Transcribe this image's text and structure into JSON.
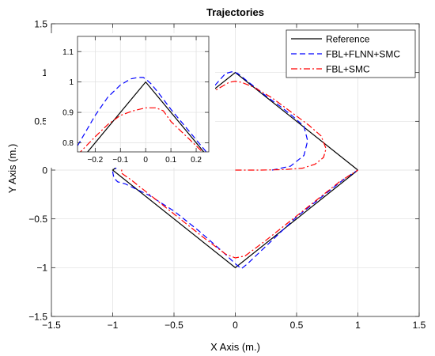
{
  "chart_data": [
    {
      "type": "line",
      "title": "Trajectories",
      "xlabel": "X Axis (m.)",
      "ylabel": "Y Axis (m.)",
      "xlim": [
        -1.5,
        1.5
      ],
      "ylim": [
        -1.5,
        1.5
      ],
      "xticks": [
        -1.5,
        -1,
        -0.5,
        0,
        0.5,
        1,
        1.5
      ],
      "xtick_labels": [
        "−1.5",
        "−1",
        "−0.5",
        "0",
        "0.5",
        "1",
        "1.5"
      ],
      "yticks": [
        -1.5,
        -1,
        -0.5,
        0,
        0.5,
        1,
        1.5
      ],
      "ytick_labels": [
        "−1.5",
        "−1",
        "−0.5",
        "0",
        "0.5",
        "1",
        "1.5"
      ],
      "grid": true,
      "legend": {
        "placement": "top-right",
        "entries": [
          "Reference",
          "FBL+FLNN+SMC",
          "FBL+SMC"
        ]
      },
      "series": [
        {
          "name": "Reference",
          "color": "#000000",
          "style": "solid",
          "x": [
            1,
            0,
            -1,
            0,
            1
          ],
          "y": [
            0,
            1,
            0,
            -1,
            0
          ]
        },
        {
          "name": "FBL+FLNN+SMC",
          "color": "#0000ff",
          "style": "dashed",
          "x": [
            0.3,
            0.45,
            0.56,
            0.59,
            0.56,
            0.47,
            0.37,
            0.26,
            0.16,
            0.07,
            0.02,
            -0.02,
            -0.08,
            -0.2,
            -0.4,
            -0.6,
            -0.8,
            -0.95,
            -1.0,
            -0.99,
            -0.96,
            -0.9,
            -0.7,
            -0.5,
            -0.3,
            -0.1,
            0.0,
            0.05,
            0.1,
            0.3,
            0.5,
            0.7,
            0.9,
            1.0
          ],
          "y": [
            0.0,
            0.04,
            0.15,
            0.3,
            0.45,
            0.55,
            0.65,
            0.75,
            0.85,
            0.94,
            0.99,
            1.01,
            0.99,
            0.82,
            0.62,
            0.42,
            0.22,
            0.06,
            -0.02,
            -0.08,
            -0.12,
            -0.14,
            -0.26,
            -0.42,
            -0.62,
            -0.84,
            -0.96,
            -1.01,
            -0.96,
            -0.72,
            -0.48,
            -0.28,
            -0.08,
            0.0
          ]
        },
        {
          "name": "FBL+SMC",
          "color": "#ff0000",
          "style": "dashdot",
          "x": [
            0.0,
            0.2,
            0.4,
            0.55,
            0.65,
            0.72,
            0.74,
            0.7,
            0.6,
            0.45,
            0.3,
            0.15,
            0.05,
            0.0,
            -0.05,
            -0.2,
            -0.4,
            -0.6,
            -0.8,
            -0.92,
            -0.93,
            -0.85,
            -0.65,
            -0.45,
            -0.25,
            -0.08,
            0.0,
            0.08,
            0.25,
            0.45,
            0.65,
            0.85,
            1.0
          ],
          "y": [
            0.0,
            0.0,
            0.005,
            0.02,
            0.06,
            0.13,
            0.22,
            0.35,
            0.46,
            0.6,
            0.74,
            0.85,
            0.9,
            0.91,
            0.9,
            0.79,
            0.6,
            0.4,
            0.2,
            0.05,
            -0.03,
            -0.1,
            -0.3,
            -0.5,
            -0.7,
            -0.86,
            -0.9,
            -0.88,
            -0.72,
            -0.52,
            -0.32,
            -0.12,
            0.0
          ]
        }
      ]
    },
    {
      "type": "line",
      "xlim": [
        -0.27,
        0.25
      ],
      "ylim": [
        0.77,
        1.15
      ],
      "xticks": [
        -0.2,
        -0.1,
        0,
        0.1,
        0.2
      ],
      "xtick_labels": [
        "−0.2",
        "−0.1",
        "0",
        "0.1",
        "0.2"
      ],
      "yticks": [
        0.8,
        0.9,
        1.0,
        1.1
      ],
      "ytick_labels": [
        "0.8",
        "0.9",
        "1",
        "1.1"
      ],
      "grid": true,
      "series": [
        {
          "name": "Reference",
          "color": "#000000",
          "style": "solid",
          "x": [
            -0.27,
            0,
            0.25
          ],
          "y": [
            0.73,
            1.0,
            0.75
          ]
        },
        {
          "name": "FBL+FLNN+SMC",
          "color": "#0000ff",
          "style": "dashed",
          "x": [
            -0.27,
            -0.2,
            -0.15,
            -0.1,
            -0.06,
            -0.03,
            -0.01,
            0.0,
            0.02,
            0.05,
            0.1,
            0.15,
            0.2,
            0.25
          ],
          "y": [
            0.79,
            0.89,
            0.95,
            0.99,
            1.01,
            1.015,
            1.015,
            1.01,
            0.995,
            0.965,
            0.91,
            0.86,
            0.81,
            0.76
          ]
        },
        {
          "name": "FBL+SMC",
          "color": "#ff0000",
          "style": "dashdot",
          "x": [
            -0.27,
            -0.2,
            -0.15,
            -0.1,
            -0.05,
            0.0,
            0.04,
            0.07,
            0.1,
            0.15,
            0.2,
            0.25
          ],
          "y": [
            0.76,
            0.82,
            0.86,
            0.89,
            0.905,
            0.915,
            0.915,
            0.905,
            0.87,
            0.83,
            0.79,
            0.75
          ]
        }
      ]
    }
  ]
}
